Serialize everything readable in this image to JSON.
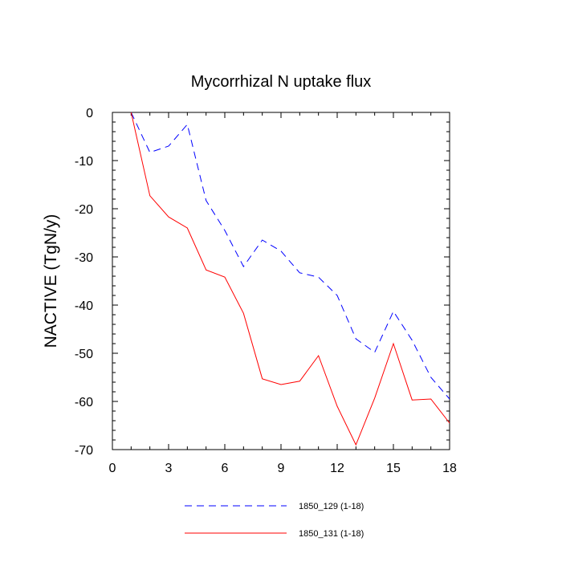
{
  "chart_data": {
    "type": "line",
    "title": "Mycorrhizal N uptake flux",
    "xlabel": "",
    "ylabel": "NACTIVE  (TgN/y)",
    "xlim": [
      0,
      18
    ],
    "ylim": [
      -70,
      0
    ],
    "xticks": [
      0,
      3,
      6,
      9,
      12,
      15,
      18
    ],
    "xtick_labels": [
      "0",
      "3",
      "6",
      "9",
      "12",
      "15",
      "18"
    ],
    "yticks": [
      0,
      -10,
      -20,
      -30,
      -40,
      -50,
      -60,
      -70
    ],
    "ytick_labels": [
      "0",
      "-10",
      "-20",
      "-30",
      "-40",
      "-50",
      "-60",
      "-70"
    ],
    "grid": false,
    "legend_placement": "bottom",
    "series": [
      {
        "name": "1850_129 (1-18)",
        "color": "#0000ff",
        "dash": "dashed",
        "x": [
          1,
          2,
          3,
          4,
          5,
          6,
          7,
          8,
          9,
          10,
          11,
          12,
          13,
          14,
          15,
          16,
          17,
          18
        ],
        "values": [
          0,
          -8.3,
          -7,
          -2.5,
          -18.3,
          -24.5,
          -32,
          -26.5,
          -28.8,
          -33.3,
          -34.2,
          -38,
          -47,
          -49.8,
          -41.3,
          -47.3,
          -55,
          -59.5
        ]
      },
      {
        "name": "1850_131 (1-18)",
        "color": "#ff0000",
        "dash": "solid",
        "x": [
          1,
          2,
          3,
          4,
          5,
          6,
          7,
          8,
          9,
          10,
          11,
          12,
          13,
          14,
          15,
          16,
          17,
          18
        ],
        "values": [
          0,
          -17.3,
          -21.7,
          -24,
          -32.7,
          -34.2,
          -41.7,
          -55.3,
          -56.5,
          -55.8,
          -50.5,
          -61,
          -69,
          -59.3,
          -48,
          -59.7,
          -59.5,
          -64.5
        ]
      }
    ]
  }
}
